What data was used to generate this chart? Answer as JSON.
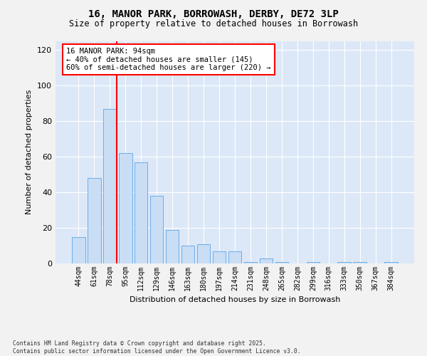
{
  "title_line1": "16, MANOR PARK, BORROWASH, DERBY, DE72 3LP",
  "title_line2": "Size of property relative to detached houses in Borrowash",
  "xlabel": "Distribution of detached houses by size in Borrowash",
  "ylabel": "Number of detached properties",
  "categories": [
    "44sqm",
    "61sqm",
    "78sqm",
    "95sqm",
    "112sqm",
    "129sqm",
    "146sqm",
    "163sqm",
    "180sqm",
    "197sqm",
    "214sqm",
    "231sqm",
    "248sqm",
    "265sqm",
    "282sqm",
    "299sqm",
    "316sqm",
    "333sqm",
    "350sqm",
    "367sqm",
    "384sqm"
  ],
  "values": [
    15,
    48,
    87,
    62,
    57,
    38,
    19,
    10,
    11,
    7,
    7,
    1,
    3,
    1,
    0,
    1,
    0,
    1,
    1,
    0,
    1
  ],
  "bar_color": "#c9ddf5",
  "bar_edge_color": "#6aaee8",
  "plot_bg_color": "#dce8f7",
  "fig_bg_color": "#f2f2f2",
  "annotation_text": "16 MANOR PARK: 94sqm\n← 40% of detached houses are smaller (145)\n60% of semi-detached houses are larger (220) →",
  "red_line_bar_index": 2,
  "ylim": [
    0,
    125
  ],
  "yticks": [
    0,
    20,
    40,
    60,
    80,
    100,
    120
  ],
  "footnote_line1": "Contains HM Land Registry data © Crown copyright and database right 2025.",
  "footnote_line2": "Contains public sector information licensed under the Open Government Licence v3.0."
}
